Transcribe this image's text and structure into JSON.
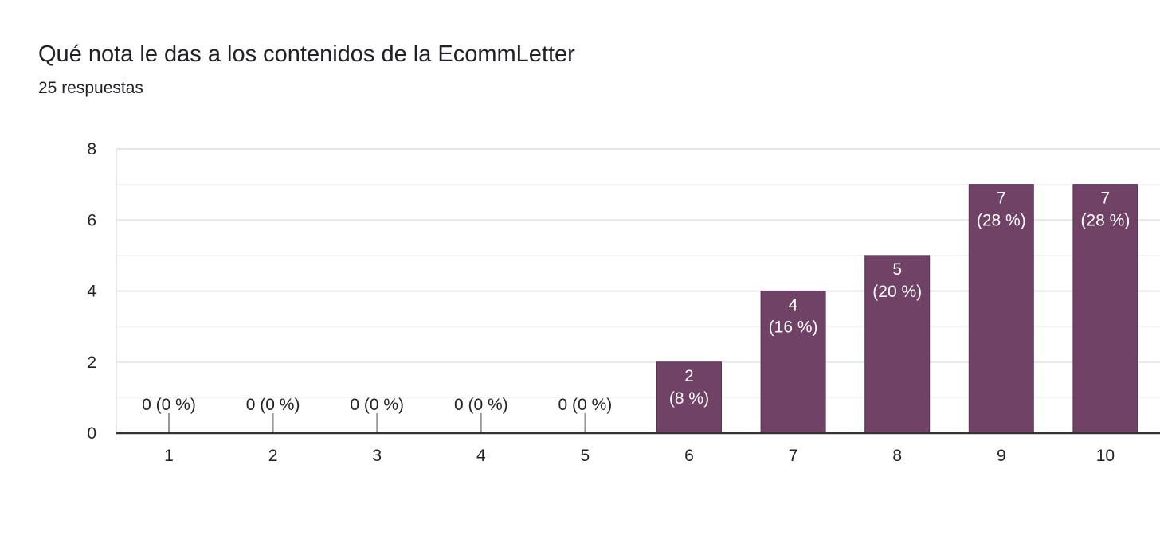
{
  "header": {
    "title": "Qué nota le das a los contenidos de la EcommLetter",
    "subtitle": "25 respuestas"
  },
  "colors": {
    "bar": "#6f4266",
    "bar_label": "#ffffff",
    "outside_label": "#222222",
    "grid_major": "#e6e6e6",
    "grid_minor": "#f3f3f3",
    "baseline": "#333333",
    "zero_tick": "#999999"
  },
  "chart_data": {
    "type": "bar",
    "title": "Qué nota le das a los contenidos de la EcommLetter",
    "subtitle": "25 respuestas",
    "categories": [
      "1",
      "2",
      "3",
      "4",
      "5",
      "6",
      "7",
      "8",
      "9",
      "10"
    ],
    "values": [
      0,
      0,
      0,
      0,
      0,
      2,
      4,
      5,
      7,
      7
    ],
    "data_labels": [
      "0 (0 %)",
      "0 (0 %)",
      "0 (0 %)",
      "0 (0 %)",
      "0 (0 %)",
      "2 (8 %)",
      "4 (16 %)",
      "5 (20 %)",
      "7 (28 %)",
      "7 (28 %)"
    ],
    "count_labels": [
      "0",
      "0",
      "0",
      "0",
      "0",
      "2",
      "4",
      "5",
      "7",
      "7"
    ],
    "percent_labels": [
      "(0 %)",
      "(0 %)",
      "(0 %)",
      "(0 %)",
      "(0 %)",
      "(8 %)",
      "(16 %)",
      "(20 %)",
      "(28 %)",
      "(28 %)"
    ],
    "ylim": [
      0,
      8
    ],
    "yticks": [
      "0",
      "2",
      "4",
      "6",
      "8"
    ],
    "xlabel": "",
    "ylabel": "",
    "grid": true,
    "legend": "none"
  }
}
